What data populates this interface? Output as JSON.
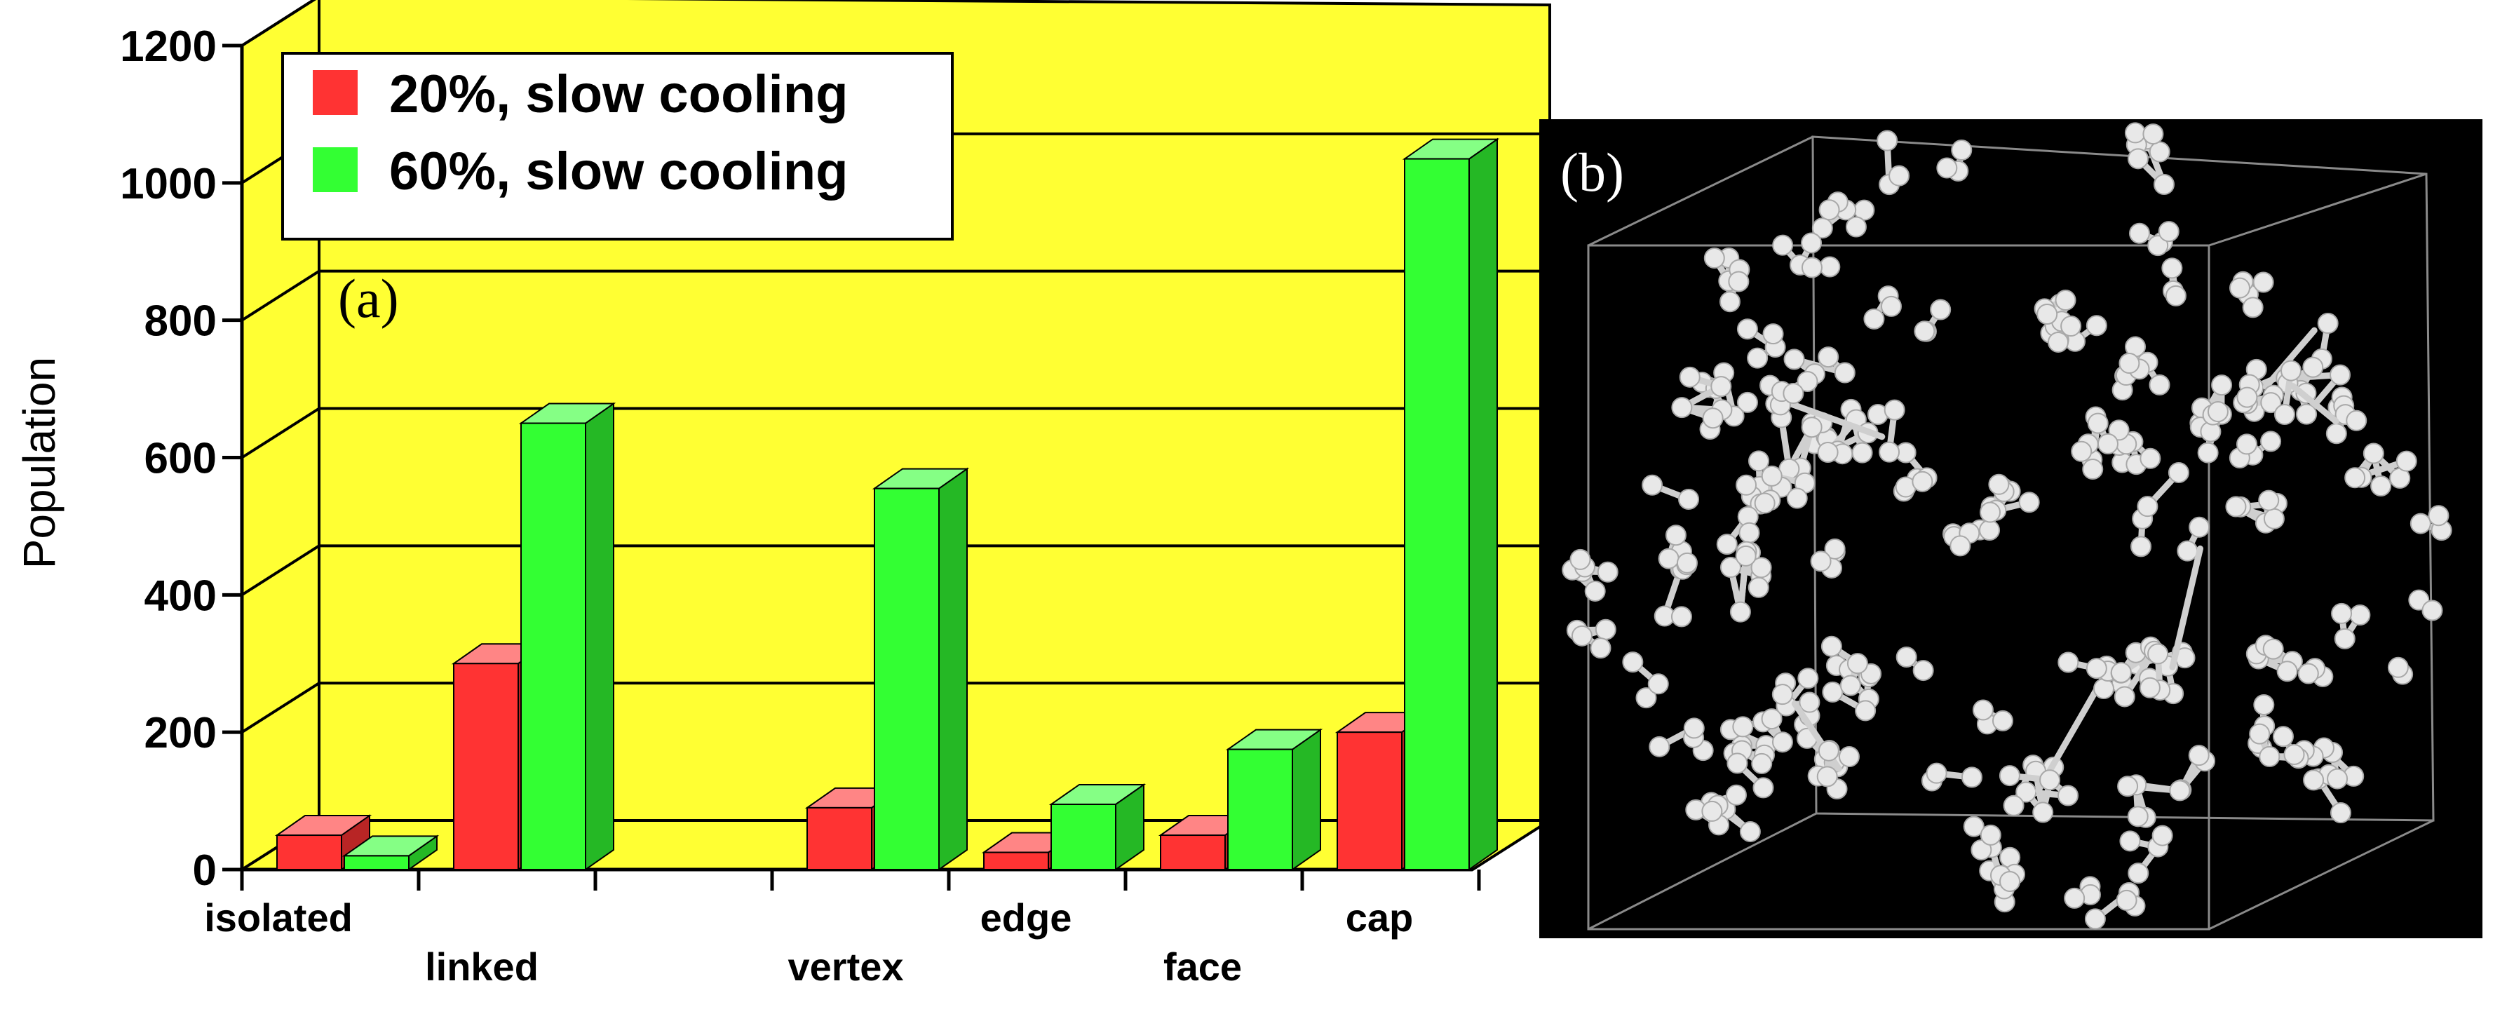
{
  "chart_data": [
    {
      "type": "bar",
      "panel_label": "(a)",
      "ylabel": "Population",
      "ylim": [
        0,
        1200
      ],
      "yticks": [
        0,
        200,
        400,
        600,
        800,
        1000,
        1200
      ],
      "grid": true,
      "legend_position": "top-left",
      "categories": [
        "isolated",
        "linked",
        "vertex",
        "edge",
        "face",
        "cap"
      ],
      "series": [
        {
          "name": "20%, slow cooling",
          "color": "#ff3333",
          "values": [
            50,
            300,
            90,
            25,
            50,
            200
          ]
        },
        {
          "name": "60%, slow cooling",
          "color": "#33ff33",
          "values": [
            20,
            650,
            555,
            95,
            175,
            1035
          ]
        }
      ]
    }
  ],
  "panel_b": {
    "label": "(b)",
    "description_type": "3D atomic cluster rendering"
  },
  "colors": {
    "background_wall": "#ffff33",
    "floor": "#ffff33",
    "panel_b_bg": "#000000",
    "atom": "#e8e8e8"
  }
}
